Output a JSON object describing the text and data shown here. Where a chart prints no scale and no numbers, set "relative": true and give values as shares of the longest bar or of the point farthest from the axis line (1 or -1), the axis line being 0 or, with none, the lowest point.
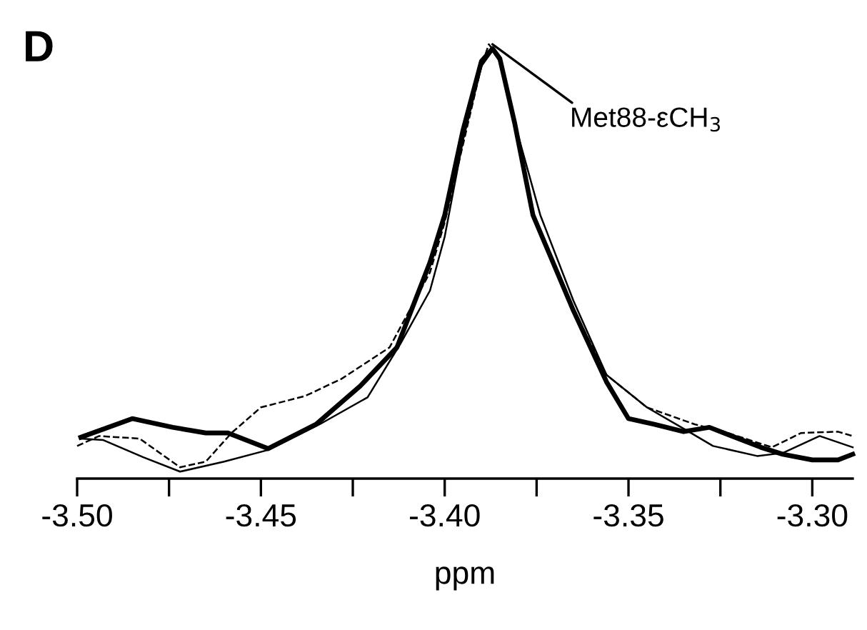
{
  "chart_data": {
    "type": "line",
    "title": "D",
    "xlabel": "ppm",
    "relative": true,
    "xlim": [
      -3.5,
      -3.289
    ],
    "xticks": [
      {
        "value": -3.5,
        "label": "-3.50"
      },
      {
        "value": -3.475,
        "label": null
      },
      {
        "value": -3.45,
        "label": "-3.45"
      },
      {
        "value": -3.425,
        "label": null
      },
      {
        "value": -3.4,
        "label": "-3.40"
      },
      {
        "value": -3.375,
        "label": null
      },
      {
        "value": -3.35,
        "label": "-3.35"
      },
      {
        "value": -3.325,
        "label": null
      },
      {
        "value": -3.3,
        "label": "-3.30"
      }
    ],
    "tick_labels": "x",
    "grid": false,
    "legend": false,
    "marker": "none",
    "annotations": [
      {
        "text": "Met88-εCH$_{3}$",
        "x": -3.387,
        "y": 1.0
      }
    ],
    "series": [
      {
        "color": "#000000",
        "line_style": "solid",
        "x": [
          -3.499,
          -3.485,
          -3.474,
          -3.465,
          -3.459,
          -3.448,
          -3.435,
          -3.423,
          -3.413,
          -3.404,
          -3.4,
          -3.395,
          -3.39,
          -3.387,
          -3.385,
          -3.381,
          -3.376,
          -3.365,
          -3.356,
          -3.35,
          -3.343,
          -3.335,
          -3.328,
          -3.314,
          -3.308,
          -3.3,
          -3.293,
          -3.289
        ],
        "values": [
          0.095,
          0.138,
          0.118,
          0.105,
          0.105,
          0.069,
          0.125,
          0.213,
          0.302,
          0.498,
          0.607,
          0.803,
          0.961,
          0.99,
          0.967,
          0.82,
          0.607,
          0.387,
          0.223,
          0.138,
          0.125,
          0.108,
          0.118,
          0.072,
          0.056,
          0.043,
          0.043,
          0.056
        ]
      },
      {
        "color": "#000000",
        "line_style": "solid",
        "x": [
          -3.499,
          -3.493,
          -3.482,
          -3.472,
          -3.46,
          -3.448,
          -3.434,
          -3.421,
          -3.412,
          -3.404,
          -3.4,
          -3.395,
          -3.39,
          -3.387,
          -3.385,
          -3.381,
          -3.374,
          -3.365,
          -3.356,
          -3.345,
          -3.335,
          -3.327,
          -3.315,
          -3.308,
          -3.298,
          -3.289
        ],
        "values": [
          0.092,
          0.089,
          0.049,
          0.016,
          0.039,
          0.066,
          0.125,
          0.187,
          0.311,
          0.433,
          0.557,
          0.78,
          0.95,
          0.985,
          0.96,
          0.82,
          0.607,
          0.41,
          0.239,
          0.164,
          0.115,
          0.075,
          0.052,
          0.059,
          0.098,
          0.072
        ]
      },
      {
        "color": "#000000",
        "line_style": "dashed",
        "x": [
          -3.5,
          -3.494,
          -3.483,
          -3.472,
          -3.465,
          -3.458,
          -3.45,
          -3.438,
          -3.428,
          -3.415,
          -3.404,
          -3.4,
          -3.395,
          -3.39,
          -3.388,
          -3.385,
          -3.381,
          -3.376,
          -3.365,
          -3.356,
          -3.345,
          -3.332,
          -3.324,
          -3.311,
          -3.303,
          -3.293,
          -3.289
        ],
        "values": [
          0.075,
          0.098,
          0.092,
          0.026,
          0.039,
          0.105,
          0.164,
          0.19,
          0.23,
          0.302,
          0.475,
          0.59,
          0.77,
          0.95,
          1.0,
          0.967,
          0.82,
          0.607,
          0.39,
          0.239,
          0.164,
          0.125,
          0.108,
          0.072,
          0.105,
          0.108,
          0.098
        ]
      }
    ]
  }
}
